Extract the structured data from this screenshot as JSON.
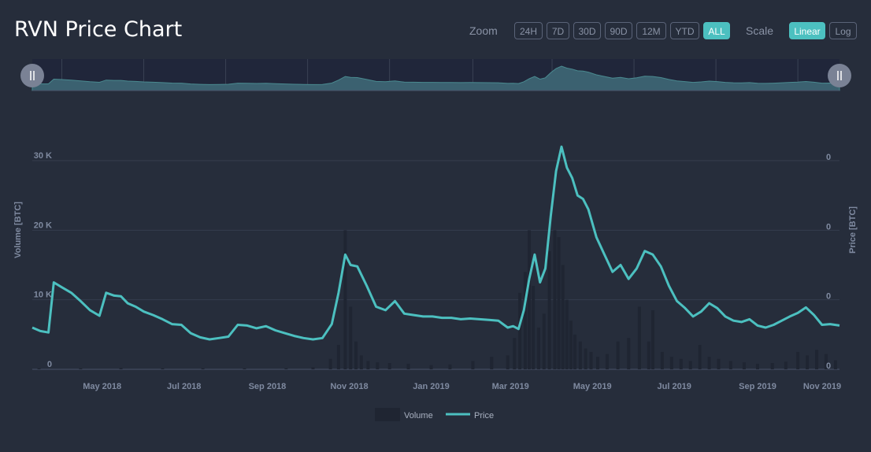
{
  "title": "RVN Price Chart",
  "zoom": {
    "label": "Zoom",
    "options": [
      "24H",
      "7D",
      "30D",
      "90D",
      "12M",
      "YTD",
      "ALL"
    ],
    "active": "ALL"
  },
  "scale": {
    "label": "Scale",
    "options": [
      "Linear",
      "Log"
    ],
    "active": "Linear"
  },
  "navigator": {
    "left_handle_icon": "drag-handle-icon",
    "right_handle_icon": "drag-handle-icon"
  },
  "colors": {
    "background": "#262d3b",
    "price_line": "#4cc0c0",
    "volume_bar": "#1f2532",
    "grid": "#3a4254",
    "accent": "#4cc0c0"
  },
  "chart_data": {
    "type": "line",
    "x_tick_labels": [
      "May 2018",
      "Jul 2018",
      "Sep 2018",
      "Nov 2018",
      "Jan 2019",
      "Mar 2019",
      "May 2019",
      "Jul 2019",
      "Sep 2019",
      "Nov 2019"
    ],
    "x_range": [
      "2018-03-10",
      "2019-11-01"
    ],
    "y_left": {
      "label": "Volume [BTC]",
      "ticks": [
        "0",
        "10 K",
        "20 K",
        "30 K"
      ],
      "range": [
        0,
        30000
      ]
    },
    "y_right": {
      "label": "Price [BTC]",
      "ticks": [
        "0",
        "0",
        "0",
        "0"
      ]
    },
    "grid": true,
    "legend": {
      "position": "bottom-center",
      "items": [
        "Volume",
        "Price"
      ]
    },
    "series": [
      {
        "name": "Price",
        "kind": "line",
        "x": [
          "2018-03-10",
          "2018-03-16",
          "2018-03-22",
          "2018-03-26",
          "2018-04-01",
          "2018-04-08",
          "2018-04-15",
          "2018-04-22",
          "2018-04-29",
          "2018-05-04",
          "2018-05-10",
          "2018-05-15",
          "2018-05-20",
          "2018-05-26",
          "2018-06-01",
          "2018-06-08",
          "2018-06-15",
          "2018-06-22",
          "2018-06-29",
          "2018-07-06",
          "2018-07-13",
          "2018-07-20",
          "2018-07-27",
          "2018-08-03",
          "2018-08-10",
          "2018-08-17",
          "2018-08-24",
          "2018-08-31",
          "2018-09-07",
          "2018-09-14",
          "2018-09-21",
          "2018-09-28",
          "2018-10-05",
          "2018-10-12",
          "2018-10-19",
          "2018-10-24",
          "2018-10-29",
          "2018-11-02",
          "2018-11-07",
          "2018-11-14",
          "2018-11-21",
          "2018-11-28",
          "2018-12-05",
          "2018-12-12",
          "2018-12-19",
          "2018-12-26",
          "2019-01-02",
          "2019-01-09",
          "2019-01-16",
          "2019-01-23",
          "2019-01-30",
          "2019-02-06",
          "2019-02-13",
          "2019-02-20",
          "2019-02-27",
          "2019-03-03",
          "2019-03-07",
          "2019-03-11",
          "2019-03-15",
          "2019-03-19",
          "2019-03-23",
          "2019-03-27",
          "2019-03-31",
          "2019-04-04",
          "2019-04-08",
          "2019-04-12",
          "2019-04-16",
          "2019-04-20",
          "2019-04-24",
          "2019-04-28",
          "2019-05-04",
          "2019-05-10",
          "2019-05-16",
          "2019-05-22",
          "2019-05-28",
          "2019-06-03",
          "2019-06-09",
          "2019-06-15",
          "2019-06-21",
          "2019-06-27",
          "2019-07-03",
          "2019-07-09",
          "2019-07-15",
          "2019-07-21",
          "2019-07-27",
          "2019-08-02",
          "2019-08-08",
          "2019-08-14",
          "2019-08-20",
          "2019-08-26",
          "2019-09-01",
          "2019-09-07",
          "2019-09-13",
          "2019-09-19",
          "2019-09-25",
          "2019-10-01",
          "2019-10-07",
          "2019-10-13",
          "2019-10-19",
          "2019-10-25",
          "2019-11-01"
        ],
        "y": [
          6000,
          5500,
          5300,
          12500,
          11800,
          11000,
          9800,
          8500,
          7700,
          11000,
          10600,
          10500,
          9500,
          9000,
          8300,
          7800,
          7200,
          6500,
          6400,
          5200,
          4600,
          4300,
          4500,
          4700,
          6400,
          6300,
          5900,
          6200,
          5600,
          5200,
          4800,
          4500,
          4300,
          4500,
          6500,
          11000,
          16500,
          15000,
          14800,
          12000,
          9000,
          8500,
          9800,
          8000,
          7800,
          7600,
          7600,
          7400,
          7400,
          7200,
          7300,
          7200,
          7100,
          7000,
          6000,
          6200,
          5800,
          8500,
          13000,
          16500,
          12500,
          14500,
          22000,
          28500,
          32000,
          29000,
          27500,
          25000,
          24500,
          23000,
          19000,
          16500,
          14000,
          15000,
          13000,
          14500,
          17000,
          16500,
          14800,
          12000,
          9800,
          8800,
          7600,
          8300,
          9500,
          8800,
          7600,
          7000,
          6800,
          7200,
          6300,
          6000,
          6400,
          7000,
          7600,
          8100,
          8900,
          7800,
          6400,
          6500,
          6300
        ],
        "color": "#4cc0c0"
      },
      {
        "name": "Volume",
        "kind": "bar",
        "x": [
          "2018-03-15",
          "2018-04-15",
          "2018-05-15",
          "2018-06-15",
          "2018-07-15",
          "2018-08-15",
          "2018-09-15",
          "2018-10-05",
          "2018-10-18",
          "2018-10-24",
          "2018-10-29",
          "2018-11-02",
          "2018-11-06",
          "2018-11-10",
          "2018-11-15",
          "2018-11-22",
          "2018-12-01",
          "2018-12-15",
          "2019-01-01",
          "2019-01-15",
          "2019-02-01",
          "2019-02-15",
          "2019-02-27",
          "2019-03-04",
          "2019-03-08",
          "2019-03-12",
          "2019-03-15",
          "2019-03-18",
          "2019-03-22",
          "2019-03-26",
          "2019-03-30",
          "2019-04-03",
          "2019-04-06",
          "2019-04-09",
          "2019-04-12",
          "2019-04-15",
          "2019-04-18",
          "2019-04-22",
          "2019-04-26",
          "2019-04-30",
          "2019-05-05",
          "2019-05-12",
          "2019-05-20",
          "2019-05-28",
          "2019-06-05",
          "2019-06-12",
          "2019-06-15",
          "2019-06-22",
          "2019-06-29",
          "2019-07-06",
          "2019-07-13",
          "2019-07-20",
          "2019-07-27",
          "2019-08-03",
          "2019-08-12",
          "2019-08-22",
          "2019-09-01",
          "2019-09-12",
          "2019-09-22",
          "2019-10-01",
          "2019-10-08",
          "2019-10-15",
          "2019-10-22",
          "2019-10-29"
        ],
        "y": [
          150,
          150,
          200,
          150,
          150,
          150,
          150,
          300,
          1500,
          3500,
          20000,
          9000,
          4000,
          2000,
          1200,
          1000,
          900,
          800,
          600,
          700,
          1200,
          1800,
          2000,
          4500,
          11000,
          14000,
          20000,
          12000,
          6000,
          8000,
          17000,
          20000,
          19000,
          15000,
          10000,
          7000,
          5000,
          4000,
          3000,
          2500,
          1800,
          2200,
          4000,
          4500,
          9000,
          4000,
          8500,
          2500,
          1800,
          1500,
          1200,
          3500,
          1800,
          1500,
          1200,
          1000,
          800,
          900,
          1100,
          2500,
          2000,
          2800,
          2200,
          1300
        ],
        "color": "#1f2532"
      }
    ]
  }
}
